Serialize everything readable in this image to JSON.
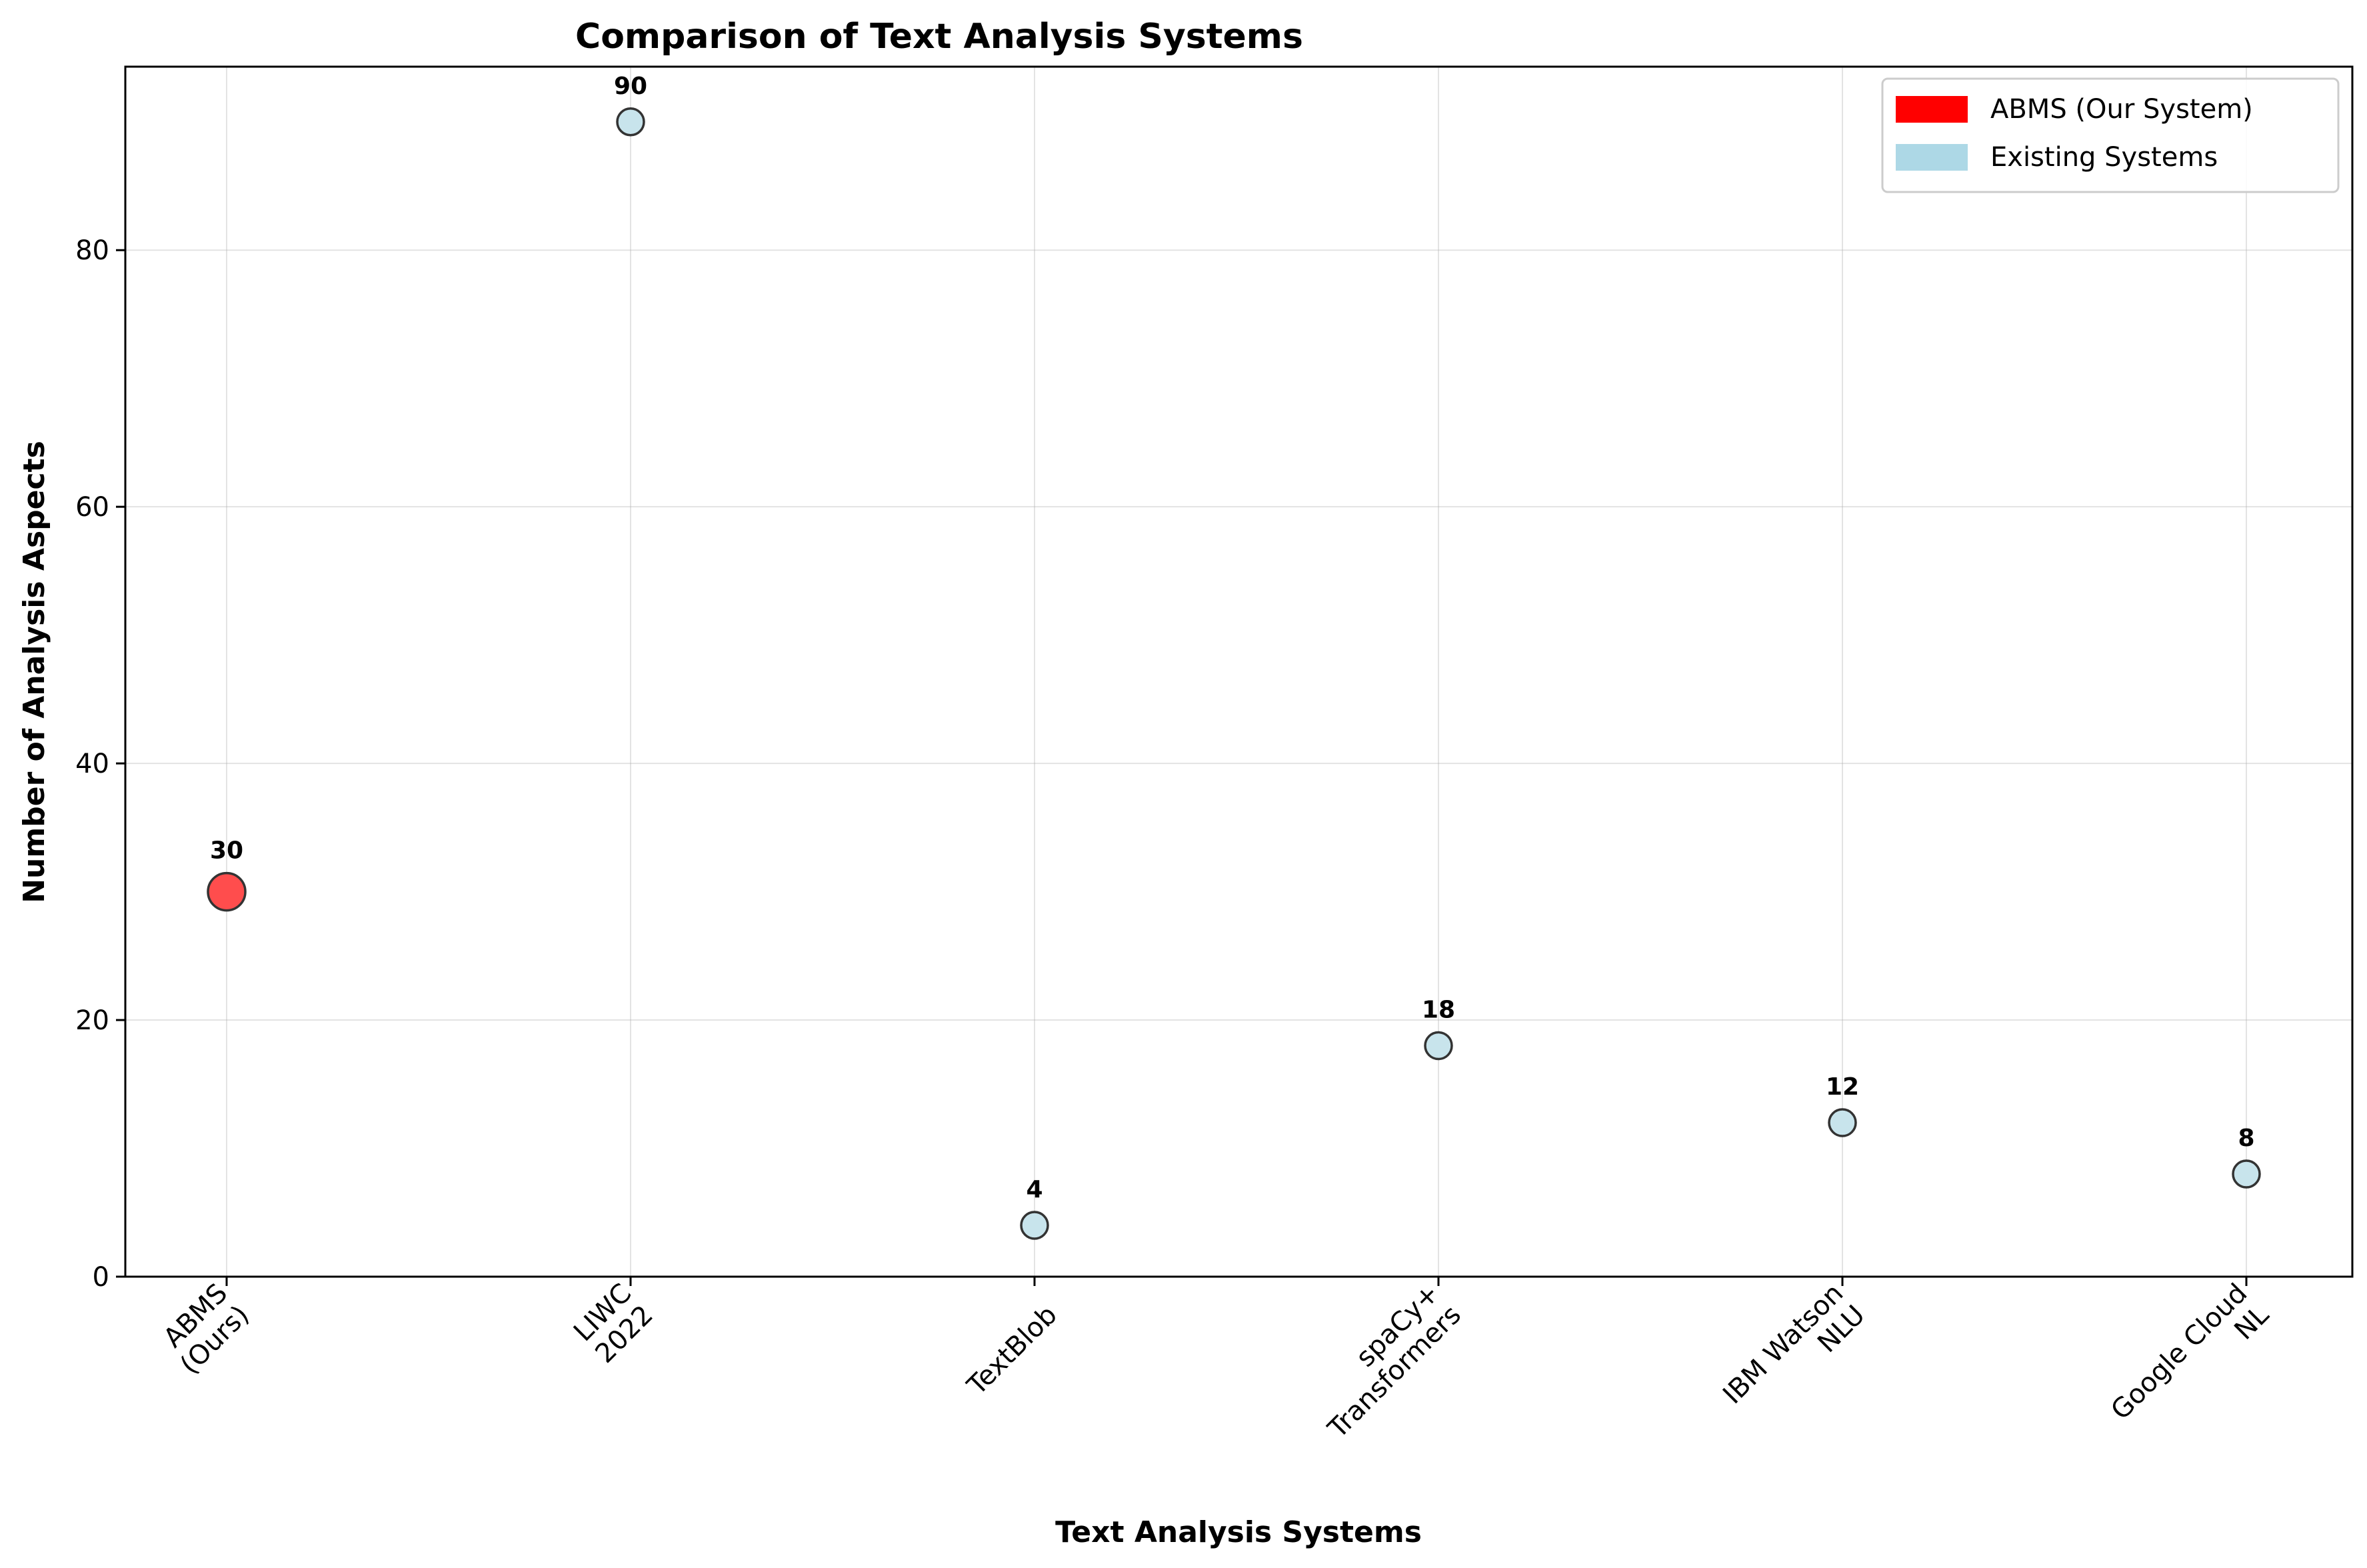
{
  "chart_data": {
    "type": "scatter",
    "title": "Comparison of Text Analysis Systems",
    "xlabel": "Text Analysis Systems",
    "ylabel": "Number of Analysis Aspects",
    "categories": [
      [
        "ABMS",
        "(Ours)"
      ],
      [
        "LIWC",
        "2022"
      ],
      [
        "TextBlob"
      ],
      [
        "spaCy+",
        "Transformers"
      ],
      [
        "IBM Watson",
        "NLU"
      ],
      [
        "Google Cloud",
        "NL"
      ]
    ],
    "values": [
      30,
      90,
      4,
      18,
      12,
      8
    ],
    "data_labels": [
      "30",
      "90",
      "4",
      "18",
      "12",
      "8"
    ],
    "groups": [
      "ABMS (Our System)",
      "Existing Systems",
      "Existing Systems",
      "Existing Systems",
      "Existing Systems",
      "Existing Systems"
    ],
    "yticks": [
      0,
      20,
      40,
      60,
      80
    ],
    "ylim": [
      0,
      94.3
    ],
    "grid": true,
    "legend": {
      "placement": "top-right",
      "entries": [
        {
          "label": "ABMS (Our System)",
          "color": "#ff0000"
        },
        {
          "label": "Existing Systems",
          "color": "#add8e6"
        }
      ]
    },
    "colors": {
      "highlight_marker": "#ff4d4d",
      "default_marker": "#c8e4ec",
      "marker_edge": "#333333"
    }
  }
}
